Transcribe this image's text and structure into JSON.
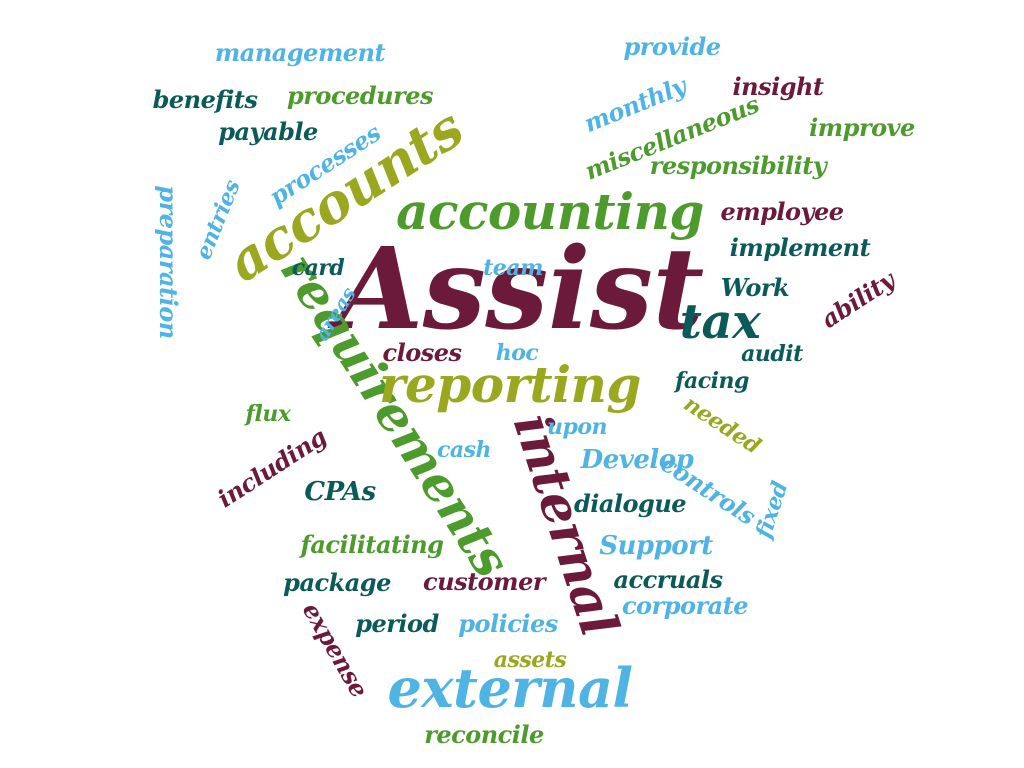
{
  "palette": {
    "maroon": "#6b1a3a",
    "green": "#4d9a2d",
    "olive": "#9aa81f",
    "teal": "#0b5a5a",
    "sky": "#4fb4e3"
  },
  "words": [
    {
      "text": "Assist",
      "color": "maroon"
    },
    {
      "text": "accounting",
      "color": "green"
    },
    {
      "text": "accounts",
      "color": "olive"
    },
    {
      "text": "requirements",
      "color": "green"
    },
    {
      "text": "reporting",
      "color": "olive"
    },
    {
      "text": "internal",
      "color": "maroon"
    },
    {
      "text": "external",
      "color": "sky"
    },
    {
      "text": "tax",
      "color": "teal"
    },
    {
      "text": "management",
      "color": "sky"
    },
    {
      "text": "benefits",
      "color": "teal"
    },
    {
      "text": "procedures",
      "color": "green"
    },
    {
      "text": "payable",
      "color": "teal"
    },
    {
      "text": "processes",
      "color": "sky"
    },
    {
      "text": "provide",
      "color": "sky"
    },
    {
      "text": "monthly",
      "color": "sky"
    },
    {
      "text": "insight",
      "color": "maroon"
    },
    {
      "text": "miscellaneous",
      "color": "green"
    },
    {
      "text": "improve",
      "color": "green"
    },
    {
      "text": "responsibility",
      "color": "green"
    },
    {
      "text": "employee",
      "color": "maroon"
    },
    {
      "text": "implement",
      "color": "teal"
    },
    {
      "text": "Work",
      "color": "teal"
    },
    {
      "text": "ability",
      "color": "maroon"
    },
    {
      "text": "preparation",
      "color": "sky"
    },
    {
      "text": "entries",
      "color": "sky"
    },
    {
      "text": "card",
      "color": "teal"
    },
    {
      "text": "team",
      "color": "sky"
    },
    {
      "text": "areas",
      "color": "sky"
    },
    {
      "text": "closes",
      "color": "maroon"
    },
    {
      "text": "hoc",
      "color": "sky"
    },
    {
      "text": "audit",
      "color": "teal"
    },
    {
      "text": "facing",
      "color": "teal"
    },
    {
      "text": "needed",
      "color": "olive"
    },
    {
      "text": "flux",
      "color": "green"
    },
    {
      "text": "including",
      "color": "maroon"
    },
    {
      "text": "cash",
      "color": "sky"
    },
    {
      "text": "upon",
      "color": "sky"
    },
    {
      "text": "Develop",
      "color": "sky"
    },
    {
      "text": "controls",
      "color": "sky"
    },
    {
      "text": "CPAs",
      "color": "teal"
    },
    {
      "text": "dialogue",
      "color": "teal"
    },
    {
      "text": "fixed",
      "color": "sky"
    },
    {
      "text": "facilitating",
      "color": "green"
    },
    {
      "text": "Support",
      "color": "sky"
    },
    {
      "text": "package",
      "color": "teal"
    },
    {
      "text": "customer",
      "color": "maroon"
    },
    {
      "text": "accruals",
      "color": "teal"
    },
    {
      "text": "expense",
      "color": "maroon"
    },
    {
      "text": "period",
      "color": "teal"
    },
    {
      "text": "policies",
      "color": "sky"
    },
    {
      "text": "corporate",
      "color": "sky"
    },
    {
      "text": "assets",
      "color": "olive"
    },
    {
      "text": "reconcile",
      "color": "green"
    }
  ]
}
